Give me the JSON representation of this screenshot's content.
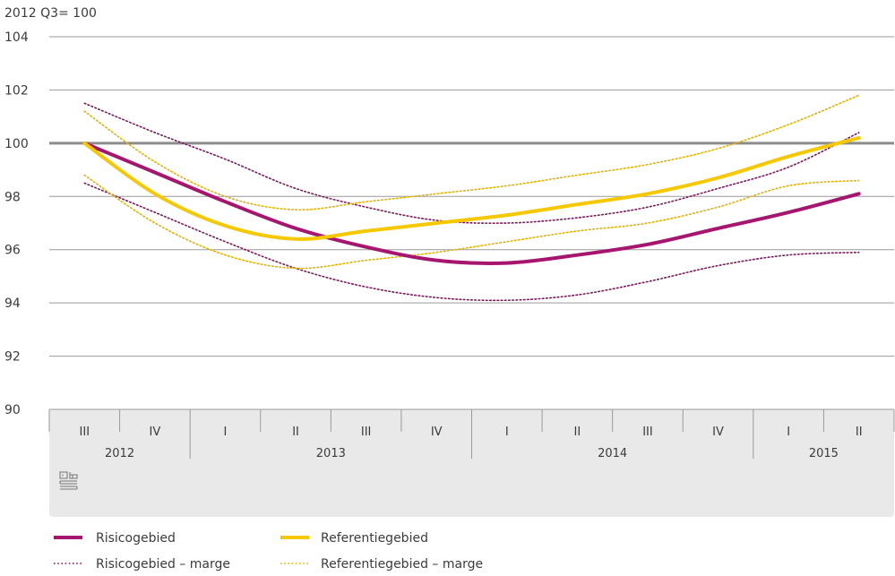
{
  "chart_data": {
    "type": "line",
    "unit_label": "2012 Q3= 100",
    "ylim": [
      90,
      104
    ],
    "yticks": [
      90,
      92,
      94,
      96,
      98,
      100,
      102,
      104
    ],
    "reference_line": 100,
    "quarters": [
      "III",
      "IV",
      "I",
      "II",
      "III",
      "IV",
      "I",
      "II",
      "III",
      "IV",
      "I",
      "II"
    ],
    "years": [
      {
        "label": "2012",
        "span": 2
      },
      {
        "label": "2013",
        "span": 4
      },
      {
        "label": "2014",
        "span": 4
      },
      {
        "label": "2015",
        "span": 2
      }
    ],
    "series": [
      {
        "name": "Risicogebied",
        "key": "risico",
        "color": "#a7166e",
        "style": "solid",
        "values": [
          100.0,
          98.9,
          97.8,
          96.8,
          96.1,
          95.6,
          95.5,
          95.8,
          96.2,
          96.8,
          97.4,
          98.1
        ]
      },
      {
        "name": "Referentiegebied",
        "key": "ref",
        "color": "#f5c800",
        "style": "solid",
        "values": [
          100.0,
          98.1,
          96.9,
          96.4,
          96.7,
          97.0,
          97.3,
          97.7,
          98.1,
          98.7,
          99.5,
          100.2
        ]
      },
      {
        "name": "Risicogebied – marge",
        "key": "risico_hi",
        "color": "#7a1a5a",
        "style": "dotted",
        "values": [
          101.5,
          100.4,
          99.4,
          98.3,
          97.6,
          97.1,
          97.0,
          97.2,
          97.6,
          98.3,
          99.1,
          100.4
        ]
      },
      {
        "name": "Risicogebied – marge",
        "key": "risico_lo",
        "color": "#7a1a5a",
        "style": "dotted",
        "values": [
          98.5,
          97.4,
          96.3,
          95.3,
          94.6,
          94.2,
          94.1,
          94.3,
          94.8,
          95.4,
          95.8,
          95.9
        ]
      },
      {
        "name": "Referentiegebied – marge",
        "key": "ref_hi",
        "color": "#e3b200",
        "style": "dotted",
        "values": [
          101.2,
          99.3,
          98.0,
          97.5,
          97.8,
          98.1,
          98.4,
          98.8,
          99.2,
          99.8,
          100.7,
          101.8
        ]
      },
      {
        "name": "Referentiegebied – marge",
        "key": "ref_lo",
        "color": "#e3b200",
        "style": "dotted",
        "values": [
          98.8,
          97.0,
          95.8,
          95.3,
          95.6,
          95.9,
          96.3,
          96.7,
          97.0,
          97.6,
          98.4,
          98.6
        ]
      }
    ],
    "legend": [
      {
        "label": "Risicogebied",
        "color": "#a7166e",
        "style": "solid"
      },
      {
        "label": "Referentiegebied",
        "color": "#f5c800",
        "style": "solid"
      },
      {
        "label": "Risicogebied – marge",
        "color": "#7a1a5a",
        "style": "dotted"
      },
      {
        "label": "Referentiegebied – marge",
        "color": "#e3b200",
        "style": "dotted"
      }
    ],
    "grid": true,
    "legend_position": "bottom-left",
    "logo_icon": "cbs-logo-icon"
  }
}
